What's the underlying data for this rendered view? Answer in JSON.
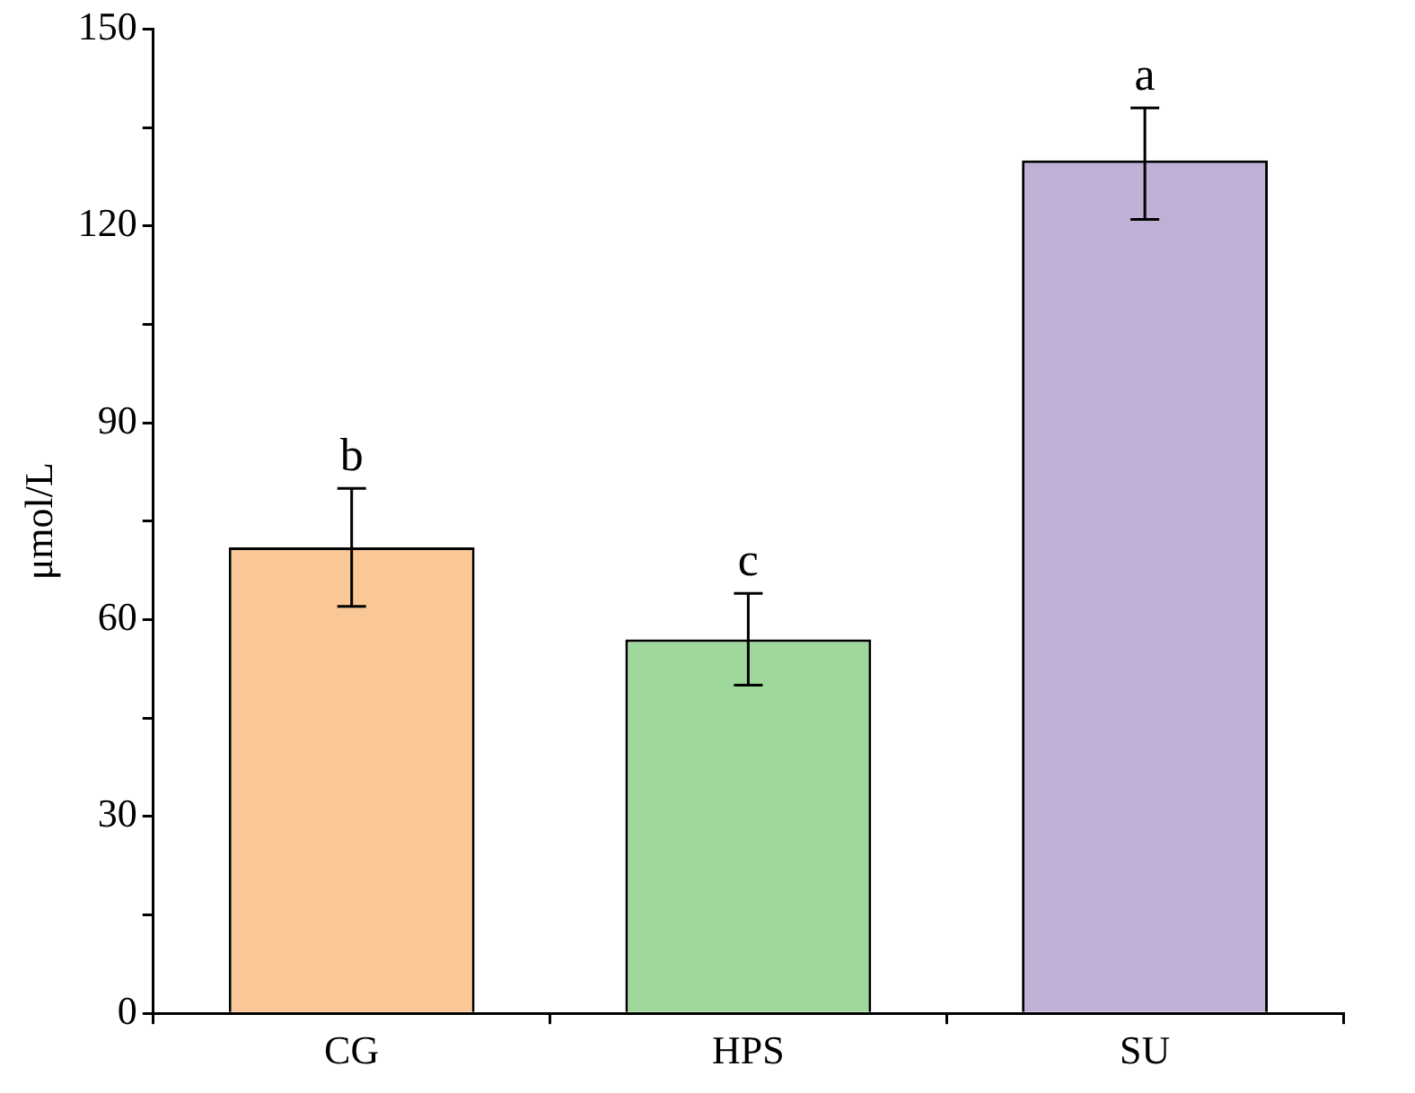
{
  "chart_data": {
    "type": "bar",
    "ylabel": "μmol/L",
    "categories": [
      "CG",
      "HPS",
      "SU"
    ],
    "values": [
      71,
      57,
      130
    ],
    "colors": [
      "#f9c896",
      "#9fd89b",
      "#c0b0d6"
    ],
    "errors": [
      [
        62,
        80
      ],
      [
        50,
        64
      ],
      [
        121,
        138
      ]
    ],
    "ylim": [
      0,
      150
    ],
    "yticks": [
      0,
      {
        "value": 15,
        "label": null
      },
      30,
      {
        "value": 45,
        "label": null
      },
      60,
      {
        "value": 75,
        "label": null
      },
      90,
      {
        "value": 105,
        "label": null
      },
      120,
      {
        "value": 135,
        "label": null
      },
      150
    ],
    "annotations": [
      {
        "text": "b",
        "x": "CG",
        "y": 80
      },
      {
        "text": "c",
        "x": "HPS",
        "y": 64
      },
      {
        "text": "a",
        "x": "SU",
        "y": 138
      }
    ],
    "grid": false,
    "legend": false
  }
}
